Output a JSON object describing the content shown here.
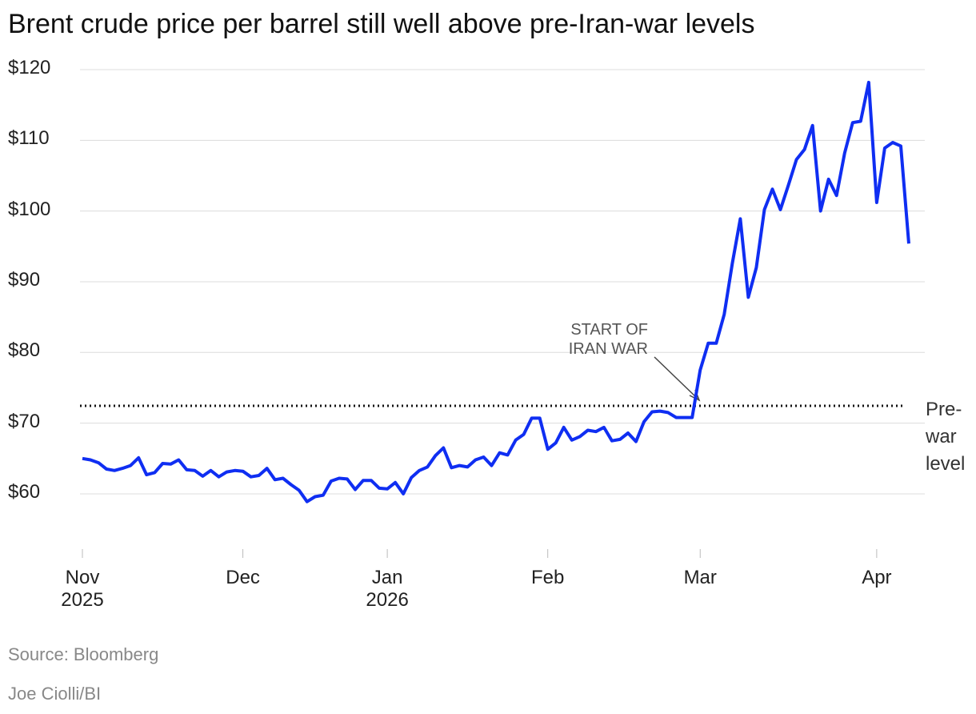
{
  "chart_data": {
    "type": "line",
    "title": "Brent crude price per barrel still well above pre-Iran-war levels",
    "source": "Source: Bloomberg",
    "credit": "Joe Ciolli/BI",
    "color": "#0f2ef2",
    "categories": [
      "Nov 2025",
      null,
      null,
      null,
      null,
      null,
      null,
      null,
      null,
      null,
      null,
      null,
      null,
      null,
      null,
      null,
      null,
      null,
      null,
      null,
      "Dec",
      null,
      null,
      null,
      null,
      null,
      null,
      null,
      null,
      null,
      null,
      null,
      null,
      null,
      null,
      null,
      null,
      null,
      "Jan 2026",
      null,
      null,
      null,
      null,
      null,
      null,
      null,
      null,
      null,
      null,
      null,
      null,
      null,
      null,
      null,
      null,
      null,
      null,
      null,
      "Feb",
      null,
      null,
      null,
      null,
      null,
      null,
      null,
      null,
      null,
      null,
      null,
      null,
      null,
      null,
      null,
      null,
      null,
      null,
      "Mar",
      null,
      null,
      null,
      null,
      null,
      null,
      null,
      null,
      null,
      null,
      null,
      null,
      null,
      null,
      null,
      null,
      null,
      null,
      null,
      null,
      null,
      "Apr",
      null,
      null,
      null,
      null
    ],
    "values": [
      65.0,
      64.8,
      64.4,
      63.5,
      63.3,
      63.6,
      64.0,
      65.1,
      62.7,
      63.0,
      64.3,
      64.2,
      64.8,
      63.4,
      63.3,
      62.5,
      63.3,
      62.4,
      63.1,
      63.3,
      63.2,
      62.4,
      62.6,
      63.6,
      62.0,
      62.2,
      61.3,
      60.5,
      58.9,
      59.6,
      59.8,
      61.8,
      62.2,
      62.1,
      60.6,
      61.9,
      61.9,
      60.8,
      60.7,
      61.6,
      60.0,
      62.3,
      63.3,
      63.8,
      65.4,
      66.5,
      63.7,
      64.0,
      63.8,
      64.8,
      65.2,
      64.0,
      65.8,
      65.5,
      67.6,
      68.4,
      70.7,
      70.7,
      66.3,
      67.2,
      69.4,
      67.6,
      68.1,
      69.0,
      68.8,
      69.4,
      67.5,
      67.7,
      68.6,
      67.4,
      70.2,
      71.6,
      71.7,
      71.5,
      70.8,
      70.8,
      70.8,
      77.5,
      81.3,
      81.3,
      85.4,
      92.6,
      98.9,
      87.8,
      92.0,
      100.2,
      103.1,
      100.2,
      103.7,
      107.3,
      108.7,
      112.1,
      100.0,
      104.5,
      102.2,
      108.2,
      112.5,
      112.7,
      118.2,
      101.2,
      108.9,
      109.7,
      109.2,
      95.4
    ],
    "ylim": [
      52,
      120
    ],
    "yticks": [
      {
        "value": 60,
        "label": "$60"
      },
      {
        "value": 70,
        "label": "$70"
      },
      {
        "value": 80,
        "label": "$80"
      },
      {
        "value": 90,
        "label": "$90"
      },
      {
        "value": 100,
        "label": "$100"
      },
      {
        "value": 110,
        "label": "$110"
      },
      {
        "value": 120,
        "label": "$120"
      }
    ],
    "grid": true,
    "reference_line": {
      "value": 72.45,
      "label": "Pre-war level"
    },
    "annotation": {
      "text": "START OF IRAN WAR"
    }
  }
}
